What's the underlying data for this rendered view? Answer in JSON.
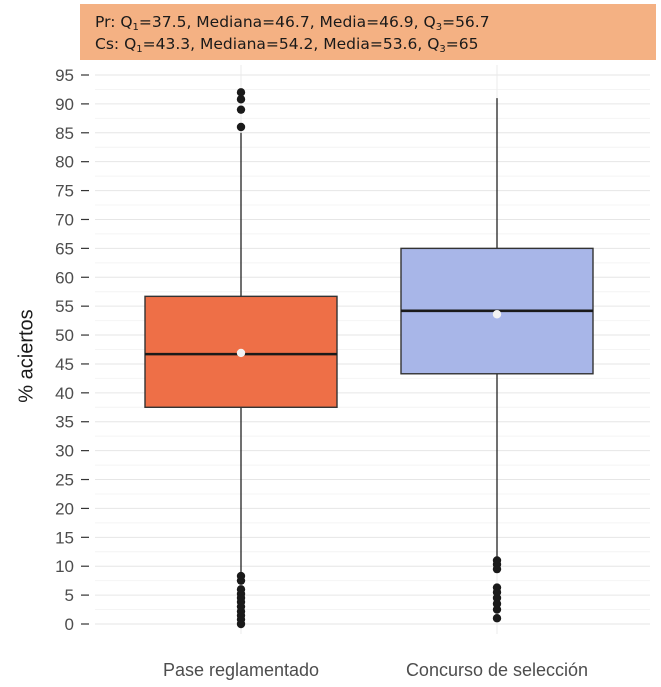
{
  "stats_box": {
    "line1": {
      "group": "Pr",
      "q1": "37.5",
      "median": "46.7",
      "mean": "46.9",
      "q3": "56.7"
    },
    "line2": {
      "group": "Cs",
      "q1": "43.3",
      "median": "54.2",
      "mean": "53.6",
      "q3": "65"
    },
    "q_symbol": "Q",
    "sub1": "1",
    "sub3": "3",
    "median_label": "Mediana",
    "mean_label": "Media",
    "background_color": "#f4b183"
  },
  "chart_data": {
    "type": "box",
    "ylabel": "% aciertos",
    "xlabel": "",
    "ylim": [
      0,
      95
    ],
    "yticks": [
      0,
      5,
      10,
      15,
      20,
      25,
      30,
      35,
      40,
      45,
      50,
      55,
      60,
      65,
      70,
      75,
      80,
      85,
      90,
      95
    ],
    "grid": true,
    "categories": [
      "Pase reglamentado",
      "Concurso de selección"
    ],
    "series": [
      {
        "name": "Pase reglamentado",
        "color": "#ee6f47",
        "q1": 37.5,
        "median": 46.7,
        "mean": 46.9,
        "q3": 56.7,
        "whisker_low": 9,
        "whisker_high": 85,
        "outliers": [
          0,
          0.8,
          1.5,
          2.2,
          3,
          3.8,
          4.5,
          5.2,
          6,
          7.5,
          8.3,
          86,
          89,
          90.8,
          92
        ]
      },
      {
        "name": "Concurso de selección",
        "color": "#a8b6e8",
        "q1": 43.3,
        "median": 54.2,
        "mean": 53.6,
        "q3": 65,
        "whisker_low": 11.5,
        "whisker_high": 91,
        "outliers": [
          1,
          2.5,
          3.5,
          4.5,
          5.5,
          6.3,
          9.5,
          10.3,
          11
        ]
      }
    ]
  }
}
